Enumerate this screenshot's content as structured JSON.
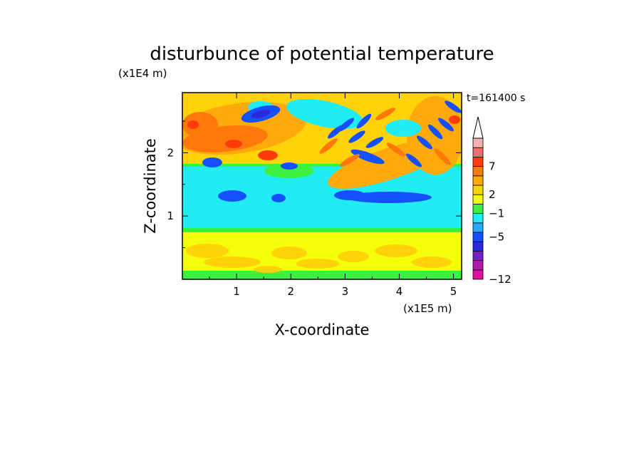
{
  "chart_data": {
    "type": "heatmap",
    "title": "disturbunce of potential temperature",
    "xlabel": "X-coordinate",
    "ylabel": "Z-coordinate",
    "x_unit": "(x1E5 m)",
    "y_unit": "(x1E4 m)",
    "time_label": "t=161400 s",
    "xlim": [
      0,
      5.15
    ],
    "ylim": [
      0,
      2.95
    ],
    "x_ticks": [
      "1",
      "2",
      "3",
      "4",
      "5"
    ],
    "y_ticks": [
      "1",
      "2"
    ],
    "colorbar": {
      "tick_labels": [
        {
          "label": "7",
          "value": 7
        },
        {
          "label": "2",
          "value": 2
        },
        {
          "label": "−1",
          "value": -1
        },
        {
          "label": "−5",
          "value": -5
        },
        {
          "label": "−12",
          "value": -12
        }
      ],
      "levels": [
        {
          "color": "#e0109a"
        },
        {
          "color": "#b01ab0"
        },
        {
          "color": "#7a1ec8"
        },
        {
          "color": "#2a2ad8"
        },
        {
          "color": "#1450ff"
        },
        {
          "color": "#28a8ff"
        },
        {
          "color": "#20ecf6"
        },
        {
          "color": "#3cf040"
        },
        {
          "color": "#f4ff08"
        },
        {
          "color": "#ffd20a"
        },
        {
          "color": "#ffaa0a"
        },
        {
          "color": "#ff780a"
        },
        {
          "color": "#ff3c0a"
        },
        {
          "color": "#f07070"
        },
        {
          "color": "#f8b0b0"
        }
      ],
      "extend_top_color": "#ffffff"
    },
    "field_colors": {
      "lower_layer": "#f4ff08",
      "lower_warm": "#ffd20a",
      "edge_green": "#3cf040",
      "mid_layer": "#20ecf6",
      "cold": "#1450ff",
      "cold_core": "#2a2ad8",
      "upper": "#ffd20a",
      "upper_warm": "#ffaa0a",
      "upper_hot": "#ff780a",
      "hot_core": "#ff3c0a"
    }
  }
}
